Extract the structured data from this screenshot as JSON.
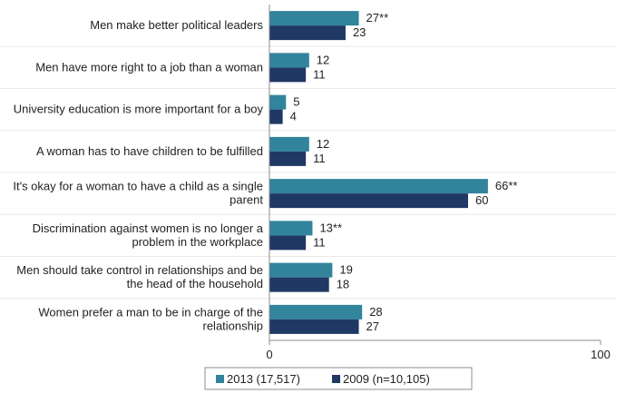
{
  "chart_data": {
    "type": "bar",
    "orientation": "horizontal",
    "categories": [
      "Men make better political leaders",
      "Men have more right to a job than a woman",
      "University education is more important for a boy",
      "A woman has to have children to be fulfilled",
      "It's okay for a woman to have a child as a single parent",
      "Discrimination against women is no longer a problem in the workplace",
      "Men should take control in relationships and be the head of the household",
      "Women prefer a man to be in charge of the relationship"
    ],
    "category_lines": [
      [
        "Men make better political leaders"
      ],
      [
        "Men have more right to a job than a woman"
      ],
      [
        "University education is more important for a boy"
      ],
      [
        "A woman has to have children to be fulfilled"
      ],
      [
        "It's okay for a woman to have a child as a single",
        "parent"
      ],
      [
        "Discrimination against women is no longer a",
        "problem in the workplace"
      ],
      [
        "Men should take control in relationships and be",
        "the head of the household"
      ],
      [
        "Women prefer a man to be in charge of the",
        "relationship"
      ]
    ],
    "series": [
      {
        "name": "2013 (17,517)",
        "color": "#31849B",
        "values": [
          27,
          12,
          5,
          12,
          66,
          13,
          19,
          28
        ],
        "labels": [
          "27**",
          "12",
          "5",
          "12",
          "66**",
          "13**",
          "19",
          "28"
        ]
      },
      {
        "name": "2009 (n=10,105)",
        "color": "#1F3864",
        "values": [
          23,
          11,
          4,
          11,
          60,
          11,
          18,
          27
        ],
        "labels": [
          "23",
          "11",
          "4",
          "11",
          "60",
          "11",
          "18",
          "27"
        ]
      }
    ],
    "xlim": [
      0,
      100
    ],
    "tick_labels": [
      "0",
      "100"
    ],
    "grid": false,
    "legend_position": "bottom"
  }
}
